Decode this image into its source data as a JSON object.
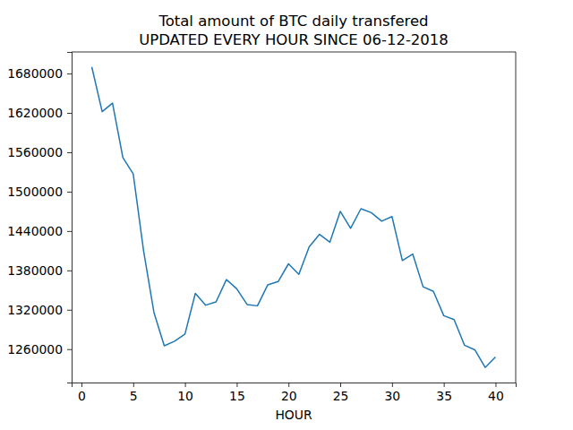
{
  "chart_data": {
    "type": "line",
    "title": "Total amount of BTC daily transfered",
    "subtitle": "UPDATED EVERY HOUR SINCE 06-12-2018",
    "x_label": "HOUR",
    "x": [
      1,
      2,
      3,
      4,
      5,
      6,
      7,
      8,
      9,
      10,
      11,
      12,
      13,
      14,
      15,
      16,
      17,
      18,
      19,
      20,
      21,
      22,
      23,
      24,
      25,
      26,
      27,
      28,
      29,
      30,
      31,
      32,
      33,
      34,
      35,
      36,
      37,
      38,
      39,
      40
    ],
    "values": [
      1690000,
      1622000,
      1635000,
      1552000,
      1527000,
      1410000,
      1316000,
      1265000,
      1272000,
      1283000,
      1345000,
      1327000,
      1332000,
      1366000,
      1352000,
      1328000,
      1326000,
      1358000,
      1363000,
      1390000,
      1374000,
      1416000,
      1435000,
      1423000,
      1470000,
      1444000,
      1474000,
      1468000,
      1455000,
      1462000,
      1395000,
      1405000,
      1355000,
      1348000,
      1311000,
      1305000,
      1266000,
      1259000,
      1232000,
      1248000
    ],
    "color": "#1f77b4",
    "xlim": [
      -0.95,
      41.95
    ],
    "xticks": [
      0,
      5,
      10,
      15,
      20,
      25,
      30,
      35,
      40
    ],
    "ylim": [
      1209100,
      1712900
    ],
    "yticks": [
      1260000,
      1320000,
      1380000,
      1440000,
      1500000,
      1560000,
      1620000,
      1680000
    ],
    "grid": false
  }
}
